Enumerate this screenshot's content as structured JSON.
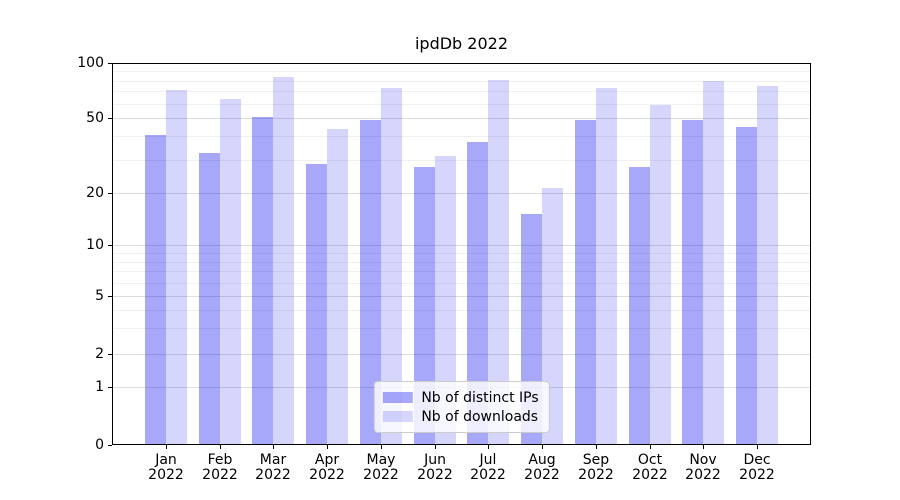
{
  "chart_data": {
    "type": "bar",
    "title": "ipdDb 2022",
    "year_label": "2022",
    "categories": [
      "Jan",
      "Feb",
      "Mar",
      "Apr",
      "May",
      "Jun",
      "Jul",
      "Aug",
      "Sep",
      "Oct",
      "Nov",
      "Dec"
    ],
    "series": [
      {
        "name": "Nb of distinct IPs",
        "color": "rgba(0,0,240,0.34)",
        "values": [
          40,
          32,
          50,
          28,
          48,
          27,
          37,
          15,
          48,
          27,
          48,
          44
        ]
      },
      {
        "name": "Nb of downloads",
        "color": "rgba(0,0,240,0.16)",
        "values": [
          70,
          63,
          83,
          43,
          72,
          31,
          80,
          21,
          72,
          58,
          79,
          74
        ]
      }
    ],
    "y_axis": {
      "scale": "symlog",
      "range": [
        0,
        100
      ],
      "major_ticks": [
        {
          "value": 0,
          "pos": 0.0
        },
        {
          "value": 1,
          "pos": 0.152
        },
        {
          "value": 2,
          "pos": 0.238
        },
        {
          "value": 5,
          "pos": 0.39
        },
        {
          "value": 10,
          "pos": 0.523
        },
        {
          "value": 20,
          "pos": 0.66
        },
        {
          "value": 50,
          "pos": 0.856
        },
        {
          "value": 100,
          "pos": 1.0
        }
      ],
      "minor_ticks": [
        3,
        4,
        6,
        7,
        8,
        9,
        30,
        40,
        60,
        70,
        80,
        90
      ]
    },
    "grid": true,
    "legend_position": "lower center"
  },
  "colors": {
    "major_grid": "#dddddd",
    "minor_grid": "#f0f0f0",
    "spine": "#000000",
    "legend_border": "#cccccc",
    "legend_background": "rgba(255,255,255,0.8)",
    "text": "#000000"
  }
}
